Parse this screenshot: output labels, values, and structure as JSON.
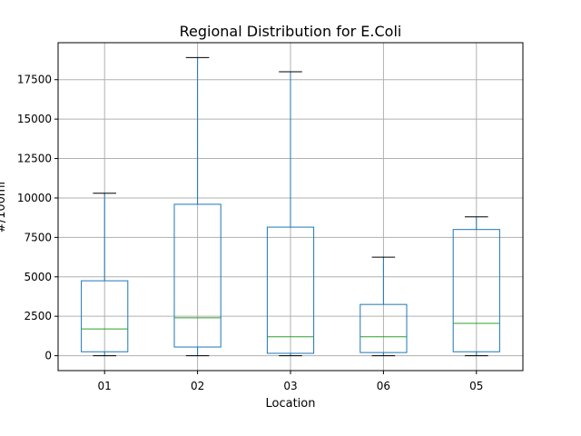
{
  "chart_data": {
    "type": "box",
    "title": "Regional Distribution for E.Coli",
    "xlabel": "Location",
    "ylabel": "#/100ml",
    "categories": [
      "01",
      "02",
      "03",
      "06",
      "05"
    ],
    "boxes": [
      {
        "category": "01",
        "whisker_low": 0,
        "q1": 250,
        "median": 1700,
        "q3": 4750,
        "whisker_high": 10300
      },
      {
        "category": "02",
        "whisker_low": 0,
        "q1": 550,
        "median": 2400,
        "q3": 9600,
        "whisker_high": 18900
      },
      {
        "category": "03",
        "whisker_low": 0,
        "q1": 150,
        "median": 1200,
        "q3": 8150,
        "whisker_high": 18000
      },
      {
        "category": "06",
        "whisker_low": 0,
        "q1": 200,
        "median": 1200,
        "q3": 3250,
        "whisker_high": 6250
      },
      {
        "category": "05",
        "whisker_low": 0,
        "q1": 250,
        "median": 2050,
        "q3": 8000,
        "whisker_high": 8800
      }
    ],
    "yticks": [
      0,
      2500,
      5000,
      7500,
      10000,
      12500,
      15000,
      17500
    ],
    "ytick_labels": [
      "0",
      "2500",
      "5000",
      "7500",
      "10000",
      "12500",
      "15000",
      "17500"
    ],
    "ylim": [
      -945,
      19845
    ],
    "grid": true,
    "colors": {
      "box": "#1f77b4",
      "median": "#2ca02c",
      "cap": "#000000",
      "grid": "#b0b0b0"
    }
  }
}
